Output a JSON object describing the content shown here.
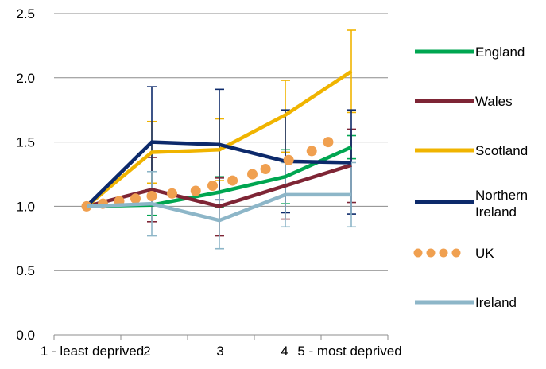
{
  "chart_data": {
    "type": "line",
    "title": "",
    "xlabel": "",
    "ylabel": "",
    "categories": [
      "1 - least deprived",
      "2",
      "3",
      "4",
      "5 - most deprived"
    ],
    "ylim": [
      0,
      2.5
    ],
    "yticks": [
      "0.0",
      "0.5",
      "1.0",
      "1.5",
      "2.0",
      "2.5"
    ],
    "grid": "horizontal",
    "legend_position": "right",
    "series": [
      {
        "name": "England",
        "color": "#00A651",
        "style": "solid",
        "x_offset": 0.0,
        "values": [
          1.0,
          1.01,
          1.11,
          1.23,
          1.46
        ],
        "err_low": [
          1.0,
          0.93,
          0.99,
          1.02,
          1.37
        ],
        "err_high": [
          1.0,
          1.09,
          1.23,
          1.44,
          1.55
        ]
      },
      {
        "name": "Wales",
        "color": "#7E2535",
        "style": "solid",
        "x_offset": 0.0,
        "values": [
          1.0,
          1.13,
          1.0,
          1.16,
          1.32
        ],
        "err_low": [
          1.0,
          0.88,
          0.77,
          0.9,
          1.03
        ],
        "err_high": [
          1.0,
          1.38,
          1.22,
          1.42,
          1.6
        ]
      },
      {
        "name": "Scotland",
        "color": "#F0B400",
        "style": "solid",
        "x_offset": 0.0,
        "values": [
          1.0,
          1.42,
          1.44,
          1.71,
          2.05
        ],
        "err_low": [
          1.0,
          1.18,
          1.2,
          1.42,
          1.73
        ],
        "err_high": [
          1.0,
          1.66,
          1.68,
          1.98,
          2.37
        ]
      },
      {
        "name": "Northern Ireland",
        "legend_lines": [
          "Northern",
          "Ireland"
        ],
        "color": "#0D2A6B",
        "style": "solid",
        "x_offset": 0.0,
        "values": [
          1.0,
          1.5,
          1.48,
          1.35,
          1.34
        ],
        "err_low": [
          1.0,
          1.07,
          1.05,
          0.95,
          0.94
        ],
        "err_high": [
          1.0,
          1.93,
          1.91,
          1.75,
          1.75
        ]
      },
      {
        "name": "UK",
        "color": "#F0A050",
        "style": "dots",
        "x_offset": 0.0,
        "values": [
          1.0,
          1.06,
          1.13,
          1.29,
          1.5
        ],
        "dots": [
          [
            1.0,
            1.0
          ],
          [
            1.25,
            1.02
          ],
          [
            1.5,
            1.04
          ],
          [
            1.75,
            1.06
          ],
          [
            2.0,
            1.08
          ],
          [
            2.3,
            1.1
          ],
          [
            2.65,
            1.12
          ],
          [
            2.9,
            1.16
          ],
          [
            3.2,
            1.2
          ],
          [
            3.5,
            1.25
          ],
          [
            3.7,
            1.29
          ],
          [
            4.05,
            1.36
          ],
          [
            4.4,
            1.43
          ],
          [
            4.65,
            1.5
          ]
        ],
        "err_low": [],
        "err_high": []
      },
      {
        "name": "Ireland",
        "color": "#8DB6C8",
        "style": "solid",
        "x_offset": 0.0,
        "values": [
          1.0,
          1.02,
          0.89,
          1.09,
          1.09
        ],
        "err_low": [
          1.0,
          0.77,
          0.67,
          0.84,
          0.84
        ],
        "err_high": [
          1.0,
          1.27,
          1.11,
          1.34,
          1.34
        ]
      }
    ]
  }
}
